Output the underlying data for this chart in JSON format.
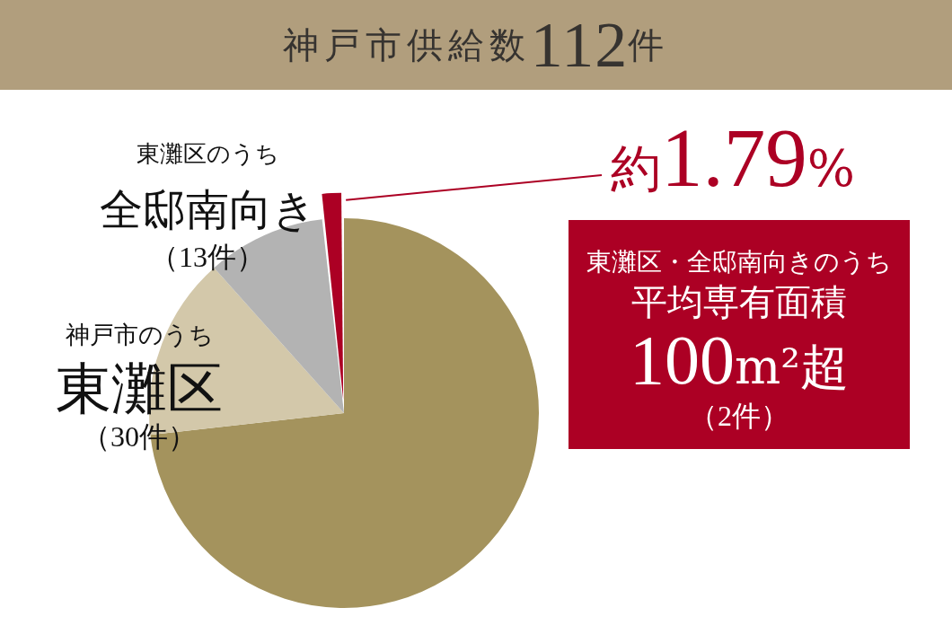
{
  "chart_data": {
    "type": "pie",
    "title": "神戸市供給数112件",
    "categories": [
      null,
      "神戸市のうち東灘区（30件）",
      "東灘区のうち全邸南向き（13件）",
      null
    ],
    "values": [
      73.21,
      15.18,
      9.82,
      1.79
    ],
    "colors": [
      "#a4935d",
      "#d3c8aa",
      "#b3b3b3",
      "#ac0024"
    ],
    "value_labels": [
      null,
      null,
      null,
      "約1.79%"
    ],
    "annotations": [
      "東灘区・全邸南向きのうち平均専有面積100m²超（2件）"
    ]
  }
}
